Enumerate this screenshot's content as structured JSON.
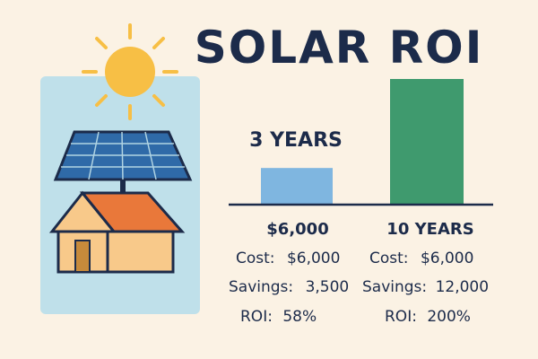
{
  "chart_data": {
    "type": "bar",
    "title": "SOLAR ROI",
    "categories": [
      "3 YEARS",
      "10 YEARS"
    ],
    "values": [
      3500,
      12000
    ],
    "bar_colors": [
      "#7fb6e0",
      "#3f9a6e"
    ],
    "details": [
      {
        "header": "$6,000",
        "cost_label": "Cost:",
        "cost_value": "$6,000",
        "savings_label": "Savings:",
        "savings_value": "3,500",
        "roi_label": "ROI:",
        "roi_value": "58%"
      },
      {
        "header": "10 YEARS",
        "cost_label": "Cost:",
        "cost_value": "$6,000",
        "savings_label": "Savings:",
        "savings_value": "12,000",
        "roi_label": "ROI:",
        "roi_value": "200%"
      }
    ]
  },
  "illustration": {
    "icons": [
      "sun-icon",
      "solar-panel-icon",
      "house-icon"
    ],
    "colors": {
      "sky": "#bfe0ea",
      "sun": "#f7bf45",
      "panel": "#2f6aa8",
      "panel_frame": "#1c2b4a",
      "roof": "#e9783a",
      "wall": "#f8c98a",
      "door": "#c78a3b"
    }
  }
}
